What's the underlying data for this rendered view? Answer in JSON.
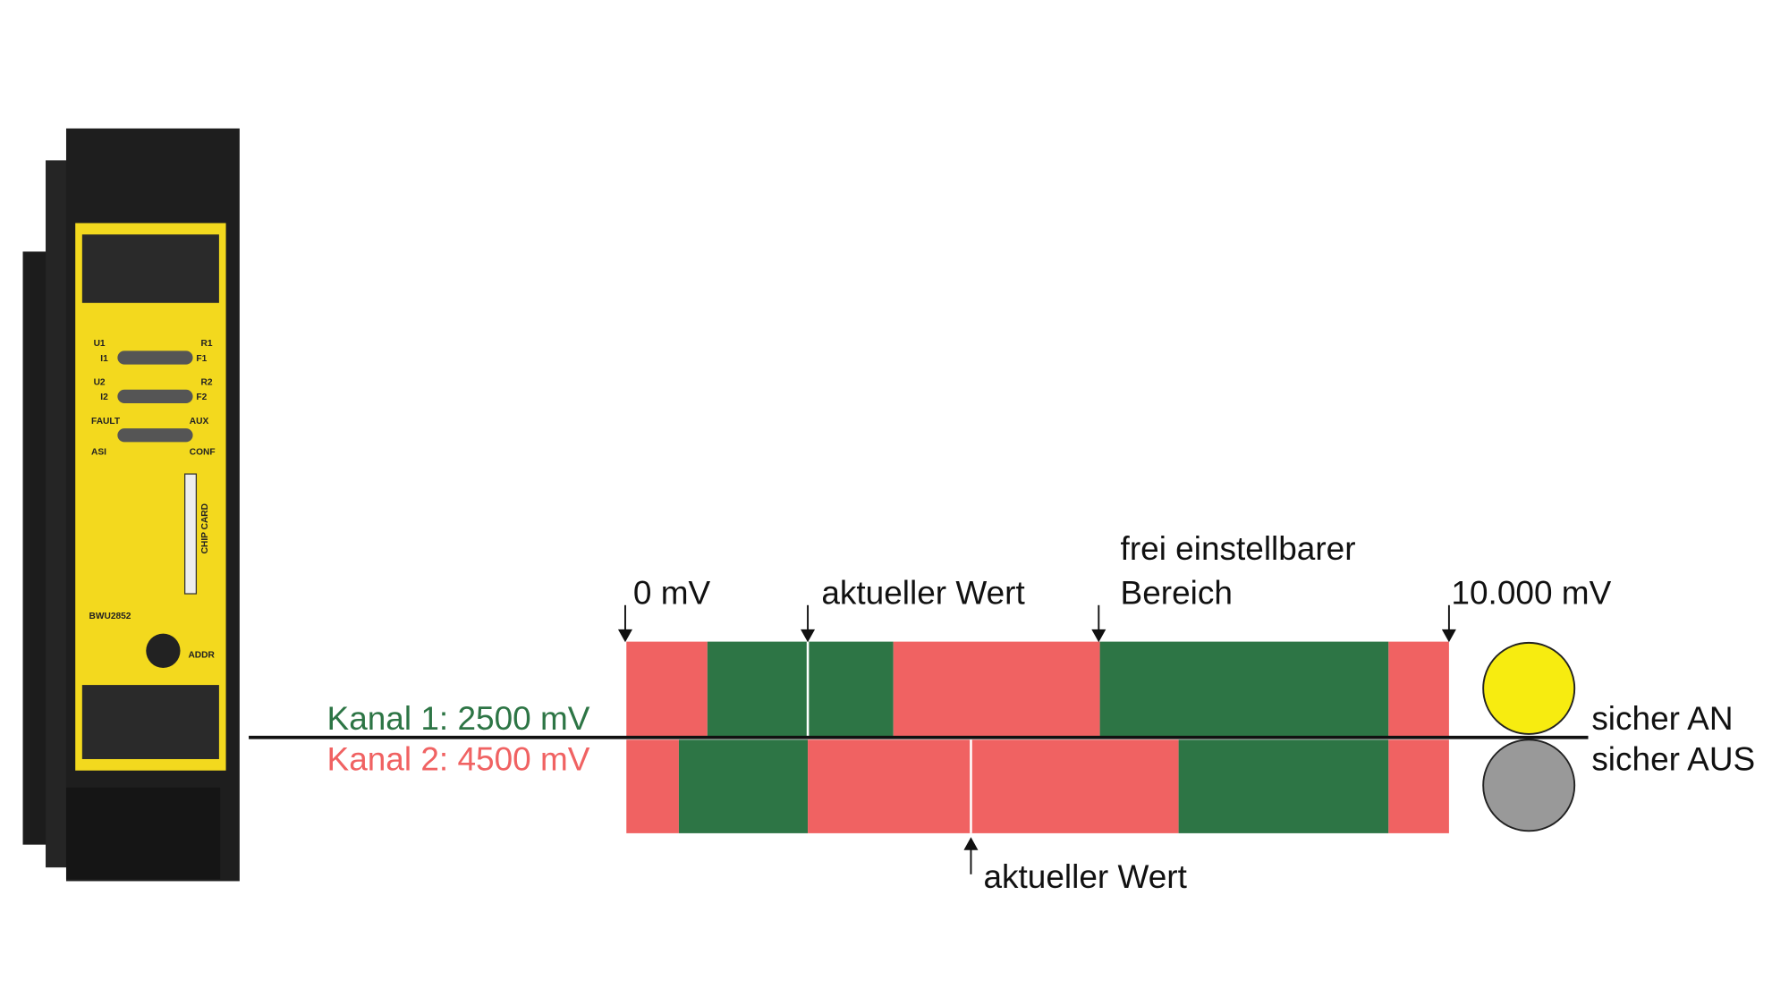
{
  "diagram": {
    "channel_1": "Kanal 1: 2500 mV",
    "channel_2": "Kanal 2: 4500 mV",
    "scale_start": "0 mV",
    "scale_end": "10.000 mV",
    "current_value_top": "aktueller Wert",
    "current_value_bottom": "aktueller Wert",
    "free_range": [
      "frei einstellbarer",
      "Bereich"
    ],
    "state_on": "sicher AN",
    "state_off": "sicher AUS"
  },
  "device": {
    "model": "BWU2852",
    "leds": [
      "U1",
      "I1",
      "R1",
      "F1",
      "U2",
      "I2",
      "R2",
      "F2",
      "FAULT",
      "AUX",
      "ASI",
      "CONF"
    ],
    "chip_card": "CHIP CARD",
    "addr": "ADDR"
  }
}
